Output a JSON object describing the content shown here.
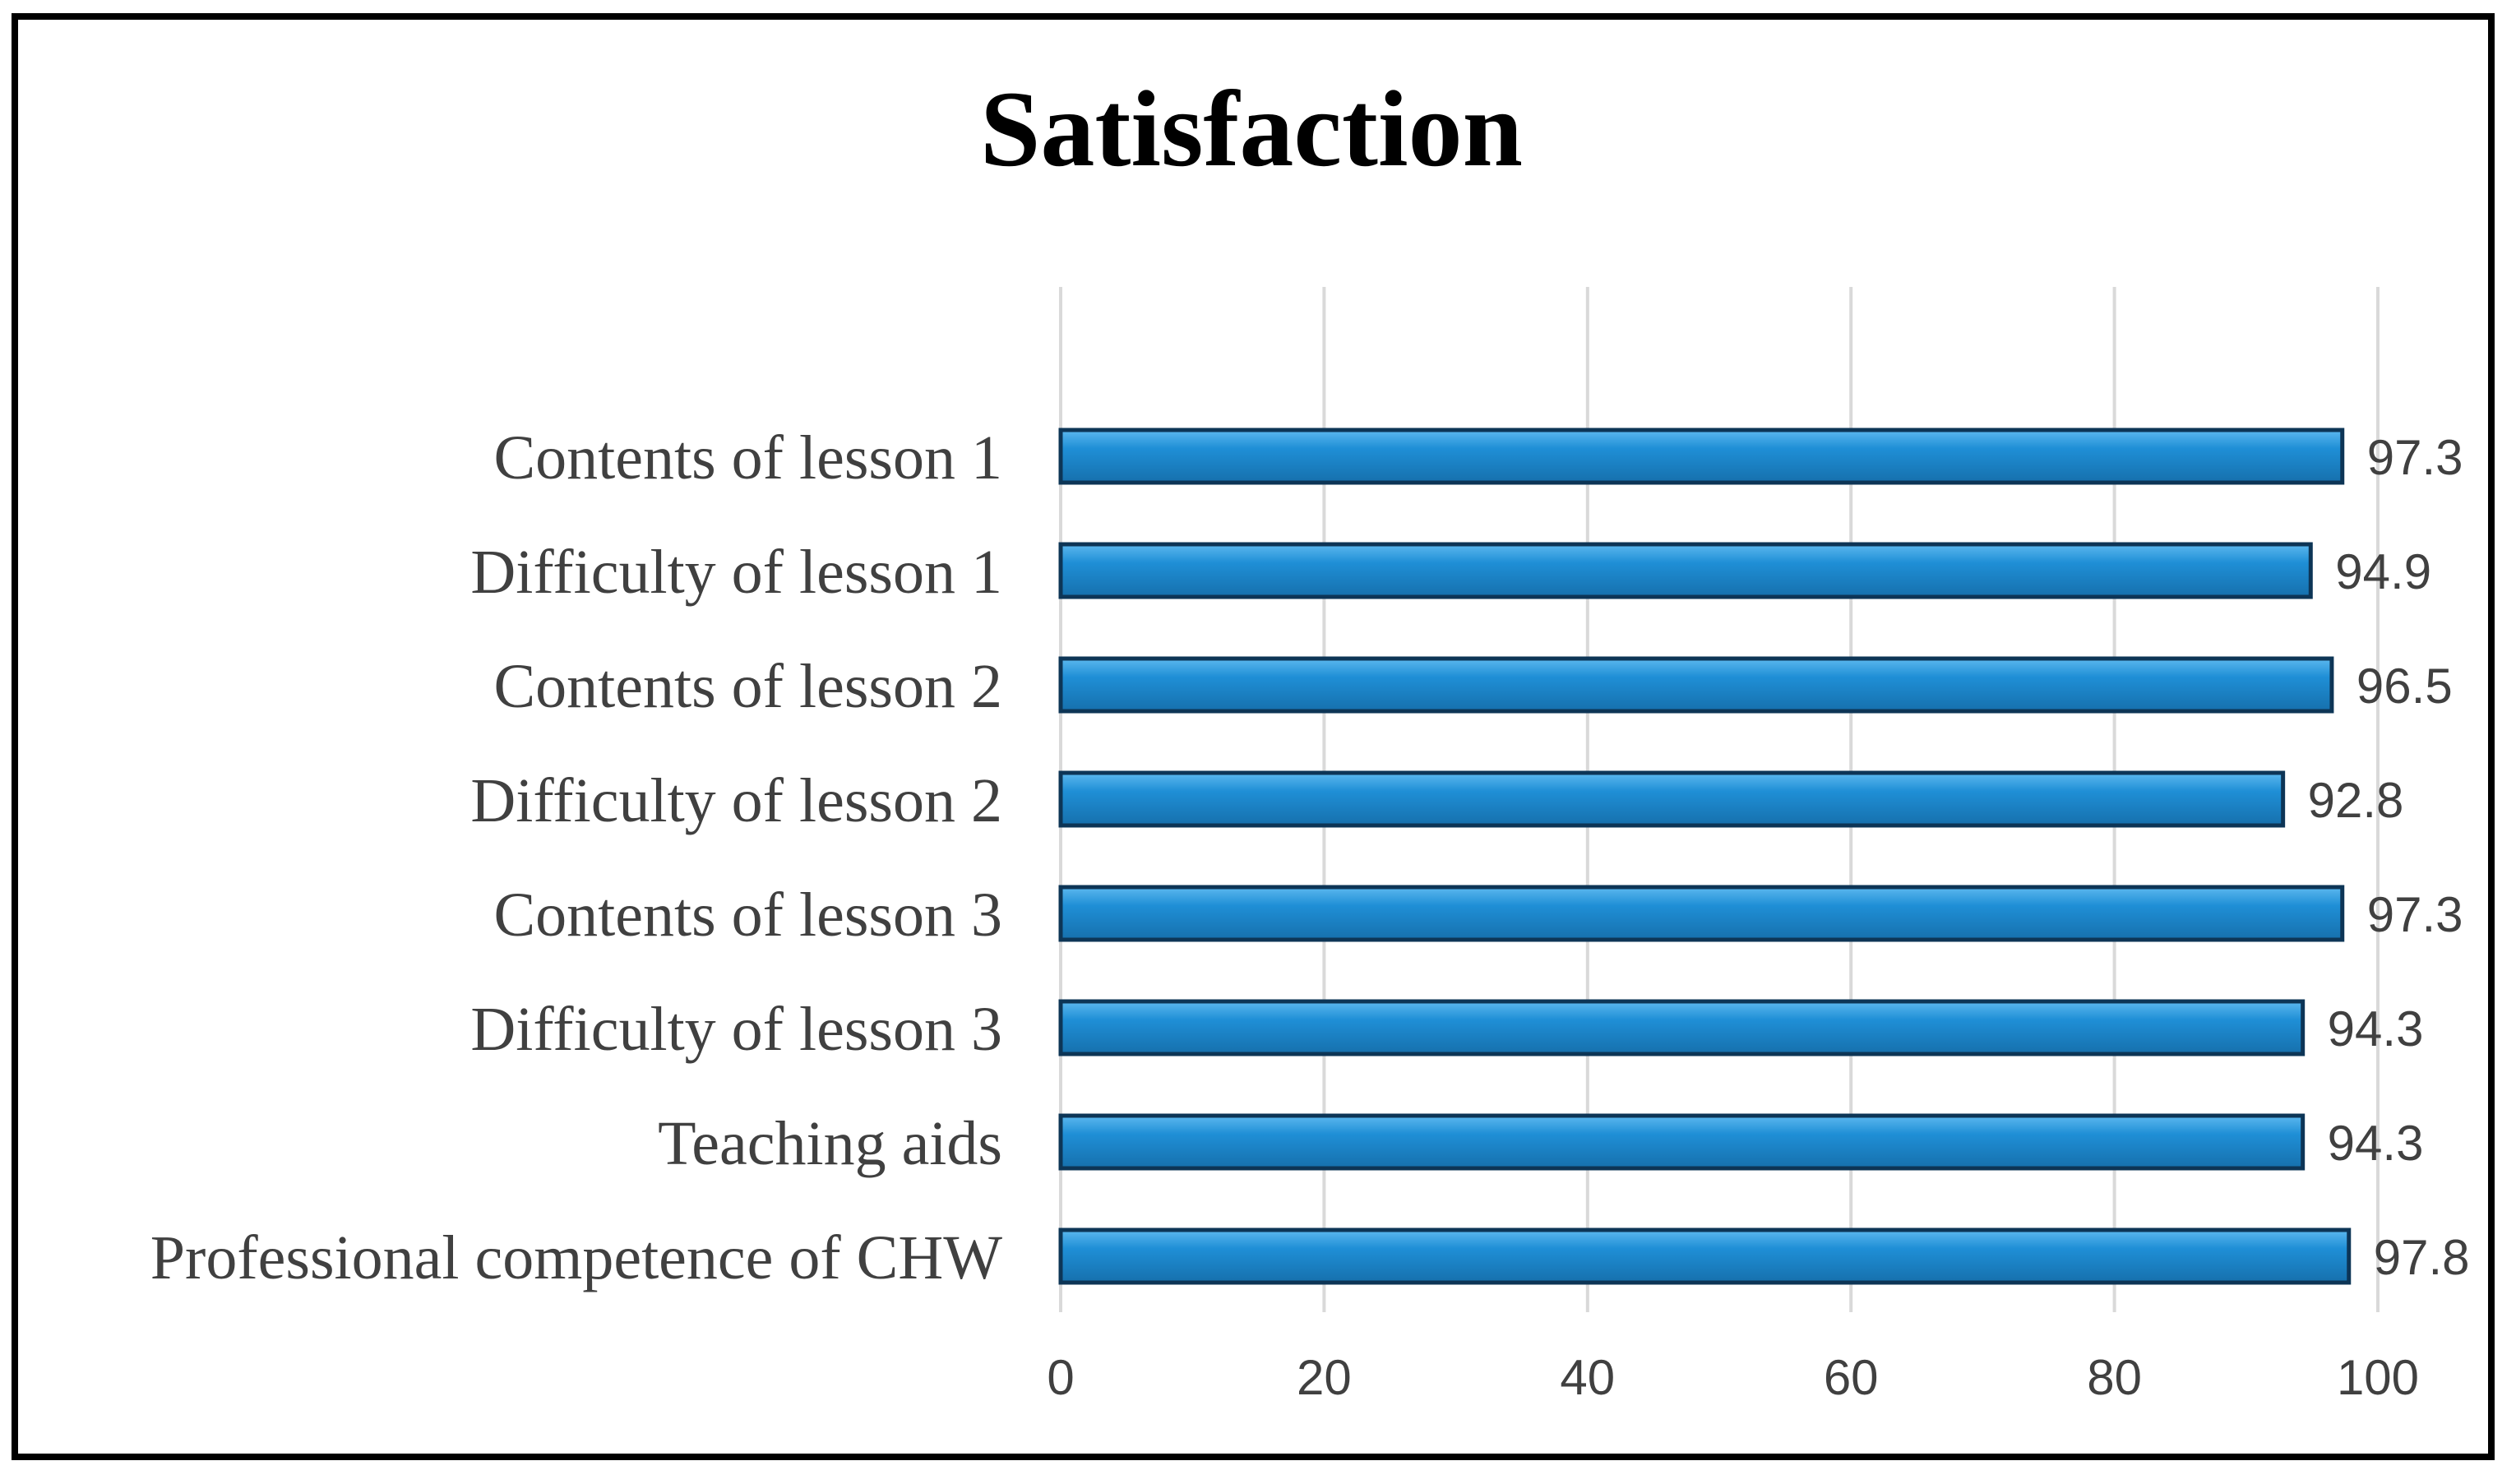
{
  "chart_data": {
    "type": "bar",
    "orientation": "horizontal",
    "title": "Satisfaction",
    "xlabel": "",
    "ylabel": "",
    "categories": [
      "Contents of lesson 1",
      "Difficulty of lesson 1",
      "Contents of lesson 2",
      "Difficulty of lesson 2",
      "Contents of lesson 3",
      "Difficulty of lesson 3",
      "Teaching aids",
      "Professional competence of CHW"
    ],
    "values": [
      97.3,
      94.9,
      96.5,
      92.8,
      97.3,
      94.3,
      94.3,
      97.8
    ],
    "value_labels": [
      "97.3",
      "94.9",
      "96.5",
      "92.8",
      "97.3",
      "94.3",
      "94.3",
      "97.8"
    ],
    "xlim": [
      0,
      100
    ],
    "xticks": [
      0,
      20,
      40,
      60,
      80,
      100
    ],
    "xtick_labels": [
      "0",
      "20",
      "40",
      "60",
      "80",
      "100"
    ],
    "grid": true,
    "legend": "none",
    "colors": {
      "bar_fill": "#1f8fd6",
      "bar_fill_light": "#5cb8ef",
      "bar_fill_dark": "#1670ad",
      "bar_edge": "#0d3556",
      "grid": "#d9d9d9",
      "frame": "#000000"
    }
  }
}
